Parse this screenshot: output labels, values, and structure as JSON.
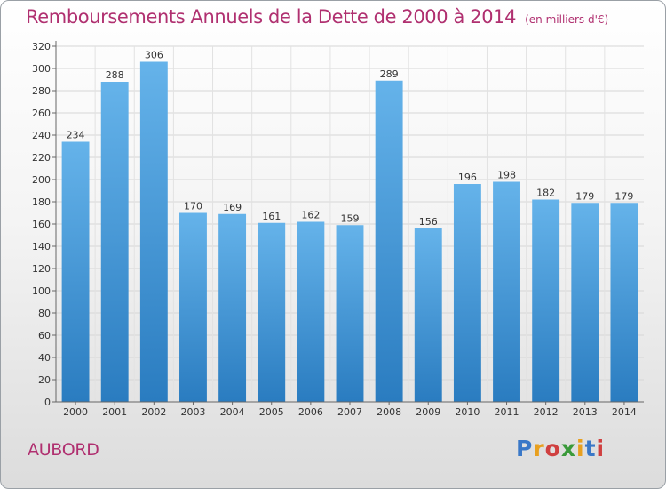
{
  "chart_data": {
    "type": "bar",
    "title": "Remboursements Annuels de la Dette de 2000 à 2014",
    "subtitle": "(en milliers d'€)",
    "categories": [
      "2000",
      "2001",
      "2002",
      "2003",
      "2004",
      "2005",
      "2006",
      "2007",
      "2008",
      "2009",
      "2010",
      "2011",
      "2012",
      "2013",
      "2014"
    ],
    "values": [
      234,
      288,
      306,
      170,
      169,
      161,
      162,
      159,
      289,
      156,
      196,
      198,
      182,
      179,
      179
    ],
    "ylim": [
      0,
      320
    ],
    "ytick_step": 20,
    "grid": true,
    "xlabel": "",
    "ylabel": ""
  },
  "commune": "AUBORD",
  "logo": {
    "letters": [
      "P",
      "r",
      "o",
      "x",
      "i",
      "t",
      "i"
    ],
    "colors": [
      "#3a78c8",
      "#e8a020",
      "#d04040",
      "#3a9a3a",
      "#e8a020",
      "#3a78c8",
      "#d04040"
    ]
  },
  "colors": {
    "bar_top": "#65b3ea",
    "bar_bottom": "#2a7cc0",
    "accent": "#b03070"
  }
}
